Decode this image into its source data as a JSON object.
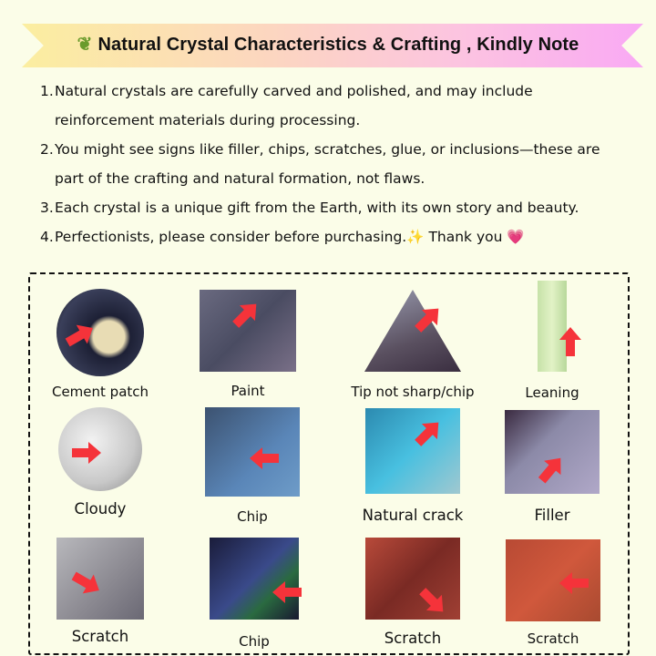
{
  "banner": {
    "icon": "leaf-icon",
    "title": "Natural Crystal Characteristics & Crafting , Kindly Note"
  },
  "notes": [
    {
      "num": "1.",
      "text": "Natural crystals are carefully carved and polished, and may include reinforcement materials during processing."
    },
    {
      "num": "2.",
      "text": "You might see signs like filler, chips, scratches, glue, or inclusions—these are part of the crafting and natural formation, not flaws."
    },
    {
      "num": "3.",
      "text": "Each crystal is a unique gift from the Earth, with its own story and beauty."
    },
    {
      "num": "4.",
      "text": "Perfectionists, please consider before purchasing.✨  Thank you 💗"
    }
  ],
  "examples": [
    {
      "label": "Cement patch"
    },
    {
      "label": "Paint"
    },
    {
      "label": "Tip not sharp/chip"
    },
    {
      "label": "Leaning"
    },
    {
      "label": "Cloudy"
    },
    {
      "label": "Chip"
    },
    {
      "label": "Natural crack"
    },
    {
      "label": "Filler"
    },
    {
      "label": "Scratch"
    },
    {
      "label": "Chip"
    },
    {
      "label": "Scratch"
    },
    {
      "label": "Scratch"
    }
  ],
  "colors": {
    "arrow": "#f5333a",
    "background": "#fbfde8"
  }
}
